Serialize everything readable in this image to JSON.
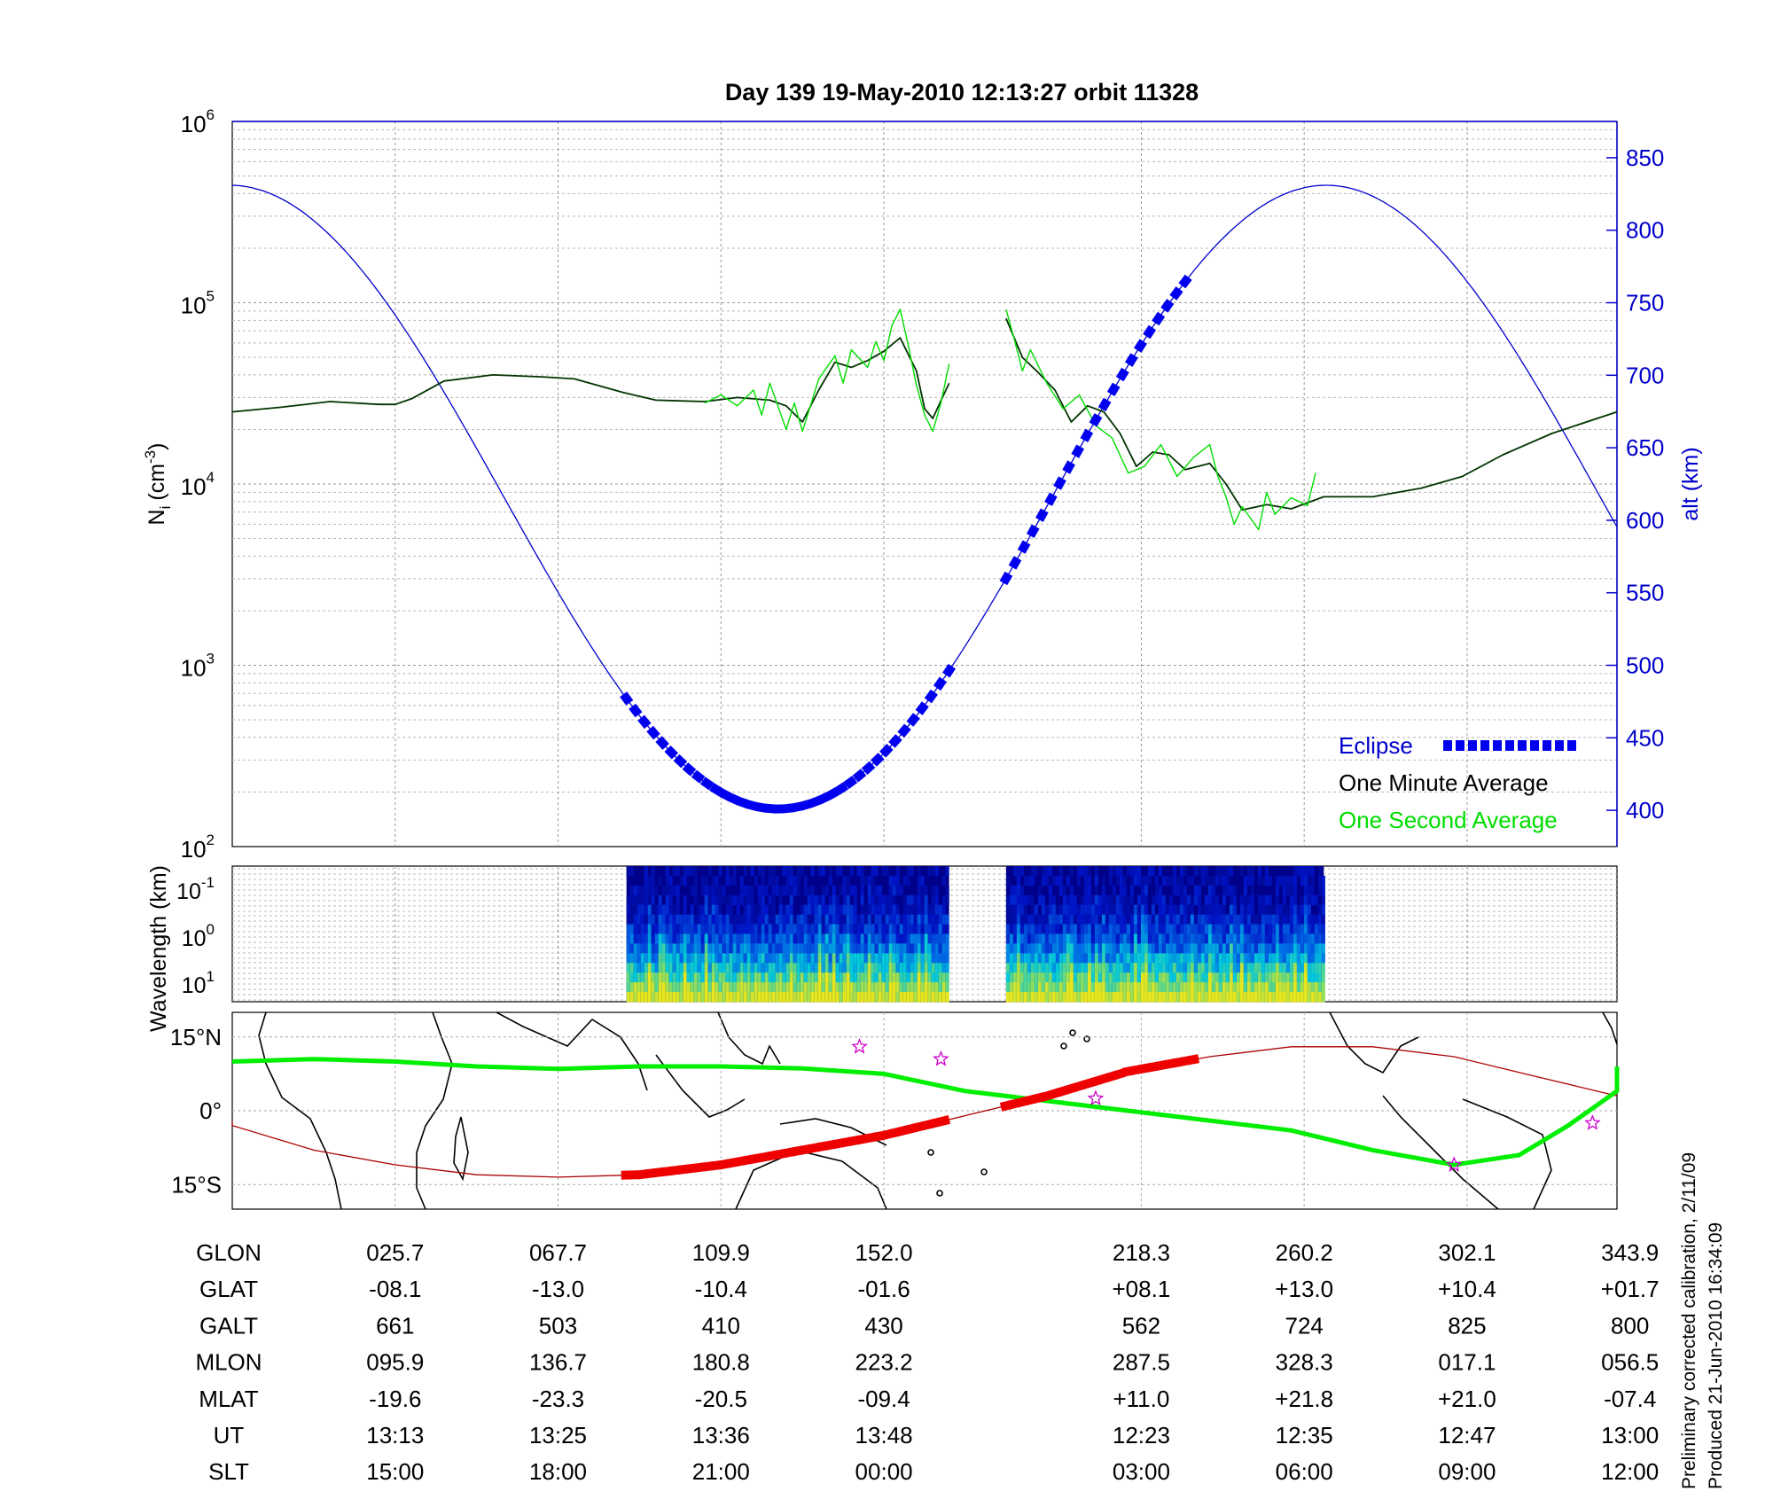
{
  "title": "Day 139  19-May-2010 12:13:27   orbit 11328",
  "footnote_lines": [
    "Preliminary corrected calibration, 2/11/09",
    "Produced 21-Jun-2010 16:34:09"
  ],
  "colors": {
    "altitude": "#0000cc",
    "eclipse": "#0000ee",
    "minute_avg": "#003300",
    "second_avg": "#00dd00",
    "track": "#00ee00",
    "terminator": "#aa0000",
    "eclipse_track": "#ee0000",
    "star": "#cc00cc"
  },
  "icons": {
    "star": "star-icon"
  },
  "chart_data": [
    {
      "type": "line",
      "panel": "density",
      "ylabel": "N",
      "ylabel_sub": "i",
      "ylabel_unit": "(cm",
      "ylabel_sup": "-3",
      "ylabel_close": ")",
      "yscale": "log",
      "ylim": [
        100,
        1000000
      ],
      "yticks": [
        {
          "base": "10",
          "exp": "2"
        },
        {
          "base": "10",
          "exp": "3"
        },
        {
          "base": "10",
          "exp": "4"
        },
        {
          "base": "10",
          "exp": "5"
        },
        {
          "base": "10",
          "exp": "6"
        }
      ],
      "y2label": "alt (km)",
      "y2lim": [
        375,
        875
      ],
      "y2ticks": [
        "400",
        "450",
        "500",
        "550",
        "600",
        "650",
        "700",
        "750",
        "800",
        "850"
      ],
      "grid": true,
      "legend_position": "bottom-right",
      "legend": [
        {
          "label": "Eclipse",
          "role": "eclipse"
        },
        {
          "label": "One Minute Average",
          "role": "minute"
        },
        {
          "label": "One Second Average",
          "role": "second"
        }
      ],
      "x_index_range": [
        0,
        8.5
      ],
      "density_minute": [
        [
          0,
          25000
        ],
        [
          0.3,
          26500
        ],
        [
          0.6,
          28500
        ],
        [
          0.9,
          27500
        ],
        [
          1.0,
          27500
        ],
        [
          1.1,
          29500
        ],
        [
          1.3,
          37000
        ],
        [
          1.6,
          40000
        ],
        [
          1.9,
          39000
        ],
        [
          2.1,
          38000
        ],
        [
          2.4,
          32000
        ],
        [
          2.6,
          29000
        ],
        [
          2.9,
          28500
        ],
        [
          3.1,
          30000
        ],
        [
          3.3,
          29000
        ],
        [
          3.4,
          27000
        ],
        [
          3.5,
          22000
        ],
        [
          3.6,
          33000
        ],
        [
          3.7,
          47000
        ],
        [
          3.8,
          44000
        ],
        [
          3.9,
          48000
        ],
        [
          4.0,
          54000
        ],
        [
          4.1,
          64000
        ],
        [
          4.2,
          42000
        ],
        [
          4.25,
          26000
        ],
        [
          4.3,
          23000
        ],
        [
          4.4,
          36000
        ],
        null,
        [
          4.75,
          82000
        ],
        [
          4.85,
          50000
        ],
        [
          4.95,
          41000
        ],
        [
          5.05,
          33000
        ],
        [
          5.15,
          22000
        ],
        [
          5.25,
          27000
        ],
        [
          5.35,
          25000
        ],
        [
          5.45,
          19000
        ],
        [
          5.55,
          12500
        ],
        [
          5.65,
          15000
        ],
        [
          5.75,
          14500
        ],
        [
          5.85,
          12000
        ],
        [
          6.0,
          13000
        ],
        [
          6.1,
          10000
        ],
        [
          6.2,
          7200
        ],
        [
          6.35,
          7700
        ],
        [
          6.5,
          7300
        ],
        [
          6.7,
          8500
        ],
        [
          7.0,
          8500
        ],
        [
          7.3,
          9500
        ],
        [
          7.55,
          11000
        ],
        [
          7.8,
          14500
        ],
        [
          8.1,
          19000
        ],
        [
          8.5,
          25000
        ]
      ],
      "density_second": [
        [
          2.9,
          28000
        ],
        [
          3.0,
          31000
        ],
        [
          3.1,
          27000
        ],
        [
          3.2,
          33000
        ],
        [
          3.25,
          24000
        ],
        [
          3.3,
          36000
        ],
        [
          3.4,
          20000
        ],
        [
          3.45,
          28000
        ],
        [
          3.5,
          19500
        ],
        [
          3.6,
          38000
        ],
        [
          3.7,
          51000
        ],
        [
          3.75,
          36000
        ],
        [
          3.8,
          55000
        ],
        [
          3.9,
          44000
        ],
        [
          3.95,
          61000
        ],
        [
          4.0,
          48000
        ],
        [
          4.05,
          75000
        ],
        [
          4.1,
          92000
        ],
        [
          4.15,
          58000
        ],
        [
          4.2,
          35000
        ],
        [
          4.25,
          24000
        ],
        [
          4.3,
          19500
        ],
        [
          4.35,
          28000
        ],
        [
          4.4,
          46000
        ],
        null,
        [
          4.75,
          92000
        ],
        [
          4.8,
          63000
        ],
        [
          4.85,
          42000
        ],
        [
          4.9,
          55000
        ],
        [
          5.0,
          36000
        ],
        [
          5.1,
          26000
        ],
        [
          5.2,
          31000
        ],
        [
          5.3,
          21000
        ],
        [
          5.4,
          18000
        ],
        [
          5.5,
          11500
        ],
        [
          5.6,
          12500
        ],
        [
          5.7,
          16500
        ],
        [
          5.8,
          11000
        ],
        [
          5.9,
          14000
        ],
        [
          6.0,
          16500
        ],
        [
          6.05,
          11000
        ],
        [
          6.1,
          8500
        ],
        [
          6.15,
          6000
        ],
        [
          6.2,
          7500
        ],
        [
          6.3,
          5600
        ],
        [
          6.35,
          9000
        ],
        [
          6.4,
          6800
        ],
        [
          6.5,
          8400
        ],
        [
          6.6,
          7600
        ],
        [
          6.65,
          11500
        ]
      ],
      "altitude_curve": {
        "ut_minutes_start": 0,
        "ut_minutes_end": 97.9,
        "perigee_index": 3.35,
        "perigee_km": 401,
        "apogee_km": 831
      },
      "eclipse_segments": [
        [
          2.42,
          4.4
        ],
        [
          4.75,
          5.9
        ]
      ]
    },
    {
      "type": "heatmap",
      "panel": "spectrogram",
      "ylabel": "Wavelength (km)",
      "yticks": [
        {
          "base": "10",
          "exp": "-1"
        },
        {
          "base": "10",
          "exp": "0"
        },
        {
          "base": "10",
          "exp": "1"
        }
      ],
      "grid": true,
      "active_ranges": [
        [
          2.42,
          4.4
        ],
        [
          4.75,
          6.7
        ]
      ]
    },
    {
      "type": "line",
      "panel": "map",
      "ylabel_ticks": [
        "15°N",
        "0°",
        "15°S"
      ],
      "ylim": [
        -20,
        20
      ],
      "grid": true,
      "track_lat": [
        [
          -1.5,
          10
        ],
        [
          0,
          10
        ],
        [
          0.5,
          10.5
        ],
        [
          1,
          10
        ],
        [
          1.5,
          9
        ],
        [
          2,
          8.5
        ],
        [
          2.5,
          9
        ],
        [
          3,
          9
        ],
        [
          3.5,
          8.6
        ],
        [
          4,
          7.5
        ],
        [
          4.5,
          4
        ],
        [
          5,
          2
        ],
        [
          5.5,
          0
        ],
        [
          6,
          -2
        ],
        [
          6.5,
          -4
        ],
        [
          7,
          -8
        ],
        [
          7.5,
          -11
        ],
        [
          7.9,
          -9
        ],
        [
          8.2,
          -3
        ],
        [
          8.5,
          4
        ],
        [
          8.8,
          9
        ]
      ],
      "terminator_lat": [
        [
          -1.5,
          -2
        ],
        [
          0,
          -3
        ],
        [
          0.5,
          -8
        ],
        [
          1,
          -11
        ],
        [
          1.5,
          -13
        ],
        [
          2,
          -13.5
        ],
        [
          2.5,
          -13
        ],
        [
          3,
          -11
        ],
        [
          3.5,
          -8
        ],
        [
          4,
          -5
        ],
        [
          4.5,
          -1
        ],
        [
          5,
          3
        ],
        [
          5.5,
          8
        ],
        [
          6,
          11
        ],
        [
          6.5,
          13
        ],
        [
          7,
          13
        ],
        [
          7.5,
          11
        ],
        [
          8,
          7
        ],
        [
          8.5,
          3
        ]
      ],
      "eclipse_track_segments": [
        [
          2.42,
          4.4
        ],
        [
          4.75,
          5.9
        ]
      ],
      "stars": [
        [
          3.85,
          13
        ],
        [
          4.35,
          10.5
        ],
        [
          5.3,
          2.5
        ],
        [
          7.5,
          -11
        ],
        [
          8.35,
          -2.5
        ]
      ]
    }
  ],
  "x_table": {
    "row_labels": [
      "GLON",
      "GLAT",
      "GALT",
      "MLON",
      "MLAT",
      "UT",
      "SLT"
    ],
    "columns": [
      {
        "index": 1,
        "values": [
          "025.7",
          "-08.1",
          "661",
          "095.9",
          "-19.6",
          "13:13",
          "15:00"
        ]
      },
      {
        "index": 2,
        "values": [
          "067.7",
          "-13.0",
          "503",
          "136.7",
          "-23.3",
          "13:25",
          "18:00"
        ]
      },
      {
        "index": 3,
        "values": [
          "109.9",
          "-10.4",
          "410",
          "180.8",
          "-20.5",
          "13:36",
          "21:00"
        ]
      },
      {
        "index": 4,
        "values": [
          "152.0",
          "-01.6",
          "430",
          "223.2",
          "-09.4",
          "13:48",
          "00:00"
        ]
      },
      {
        "index": 5.58,
        "values": [
          "218.3",
          "+08.1",
          "562",
          "287.5",
          "+11.0",
          "12:23",
          "03:00"
        ]
      },
      {
        "index": 6.58,
        "values": [
          "260.2",
          "+13.0",
          "724",
          "328.3",
          "+21.8",
          "12:35",
          "06:00"
        ]
      },
      {
        "index": 7.58,
        "values": [
          "302.1",
          "+10.4",
          "825",
          "017.1",
          "+21.0",
          "12:47",
          "09:00"
        ]
      },
      {
        "index": 8.58,
        "values": [
          "343.9",
          "+01.7",
          "800",
          "056.5",
          "-07.4",
          "13:00",
          "12:00"
        ]
      }
    ]
  }
}
